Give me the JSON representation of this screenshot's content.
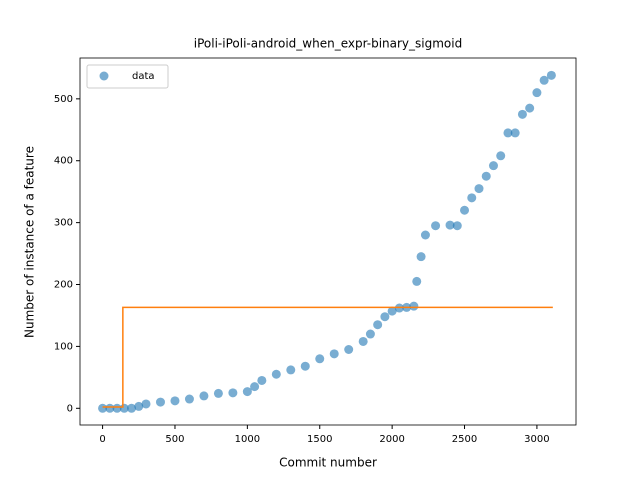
{
  "chart_data": {
    "type": "scatter",
    "title": "iPoli-iPoli-android_when_expr-binary_sigmoid",
    "xlabel": "Commit number",
    "ylabel": "Number of instance of a feature",
    "legend": "upper left",
    "xlim": [
      -156,
      3270
    ],
    "ylim": [
      -27,
      566
    ],
    "xticks": [
      0,
      500,
      1000,
      1500,
      2000,
      2500,
      3000
    ],
    "yticks": [
      0,
      100,
      200,
      300,
      400,
      500
    ],
    "series": [
      {
        "name": "data",
        "color": "#1f77b4",
        "x": [
          0,
          50,
          100,
          150,
          200,
          250,
          300,
          400,
          500,
          600,
          700,
          800,
          900,
          1000,
          1050,
          1100,
          1200,
          1300,
          1400,
          1500,
          1600,
          1700,
          1800,
          1850,
          1900,
          1950,
          2000,
          2050,
          2100,
          2150,
          2170,
          2200,
          2230,
          2300,
          2400,
          2450,
          2500,
          2550,
          2600,
          2650,
          2700,
          2750,
          2800,
          2850,
          2900,
          2950,
          3000,
          3050,
          3100
        ],
        "values": [
          0,
          0,
          0,
          0,
          0,
          3,
          7,
          10,
          12,
          15,
          20,
          24,
          25,
          27,
          35,
          45,
          55,
          62,
          68,
          80,
          88,
          95,
          108,
          120,
          135,
          148,
          157,
          162,
          163,
          165,
          205,
          245,
          280,
          295,
          296,
          295,
          320,
          340,
          355,
          375,
          392,
          408,
          445,
          445,
          475,
          485,
          510,
          530,
          538
        ]
      },
      {
        "color": "#ff7f0e",
        "x": [
          0,
          140,
          140,
          3110
        ],
        "values": [
          2,
          2,
          163,
          163
        ]
      }
    ]
  }
}
